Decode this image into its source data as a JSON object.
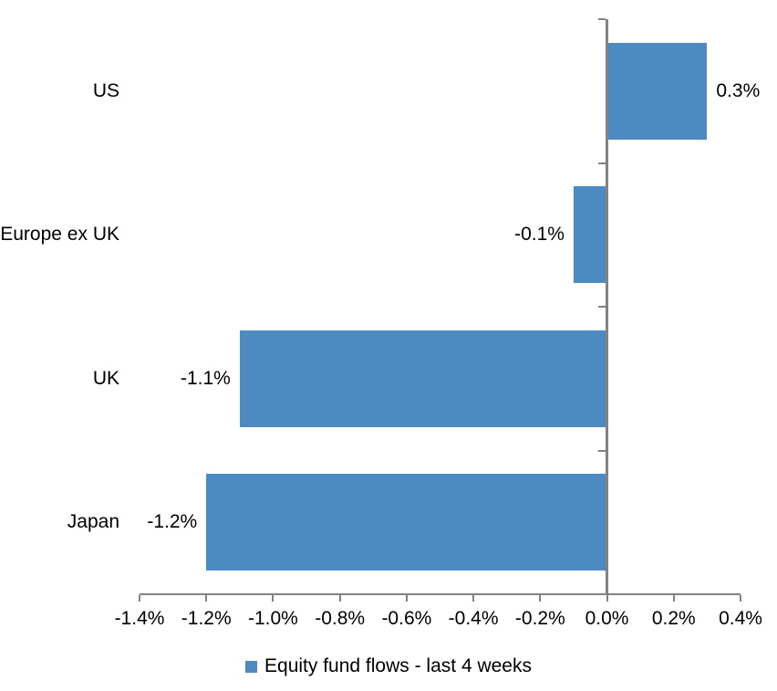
{
  "chart_data": {
    "type": "bar",
    "orientation": "horizontal",
    "title": "",
    "categories": [
      "US",
      "Europe ex UK",
      "UK",
      "Japan"
    ],
    "values": [
      0.3,
      -0.1,
      -1.1,
      -1.2
    ],
    "value_labels": [
      "0.3%",
      "-0.1%",
      "-1.1%",
      "-1.2%"
    ],
    "series_name": "Equity fund flows - last 4 weeks",
    "x_ticks": [
      "-1.4%",
      "-1.2%",
      "-1.0%",
      "-0.8%",
      "-0.6%",
      "-0.4%",
      "-0.2%",
      "0.0%",
      "0.2%",
      "0.4%"
    ],
    "xlim": [
      -1.4,
      0.4
    ],
    "unit": "%",
    "xlabel": "",
    "ylabel": "",
    "grid": false,
    "legend_position": "bottom",
    "data_label_position": "outside-end",
    "bar_color": "#4E8AC2",
    "axis_color": "#828282",
    "text_color": "#000000",
    "background_color": "#FFFFFF"
  }
}
